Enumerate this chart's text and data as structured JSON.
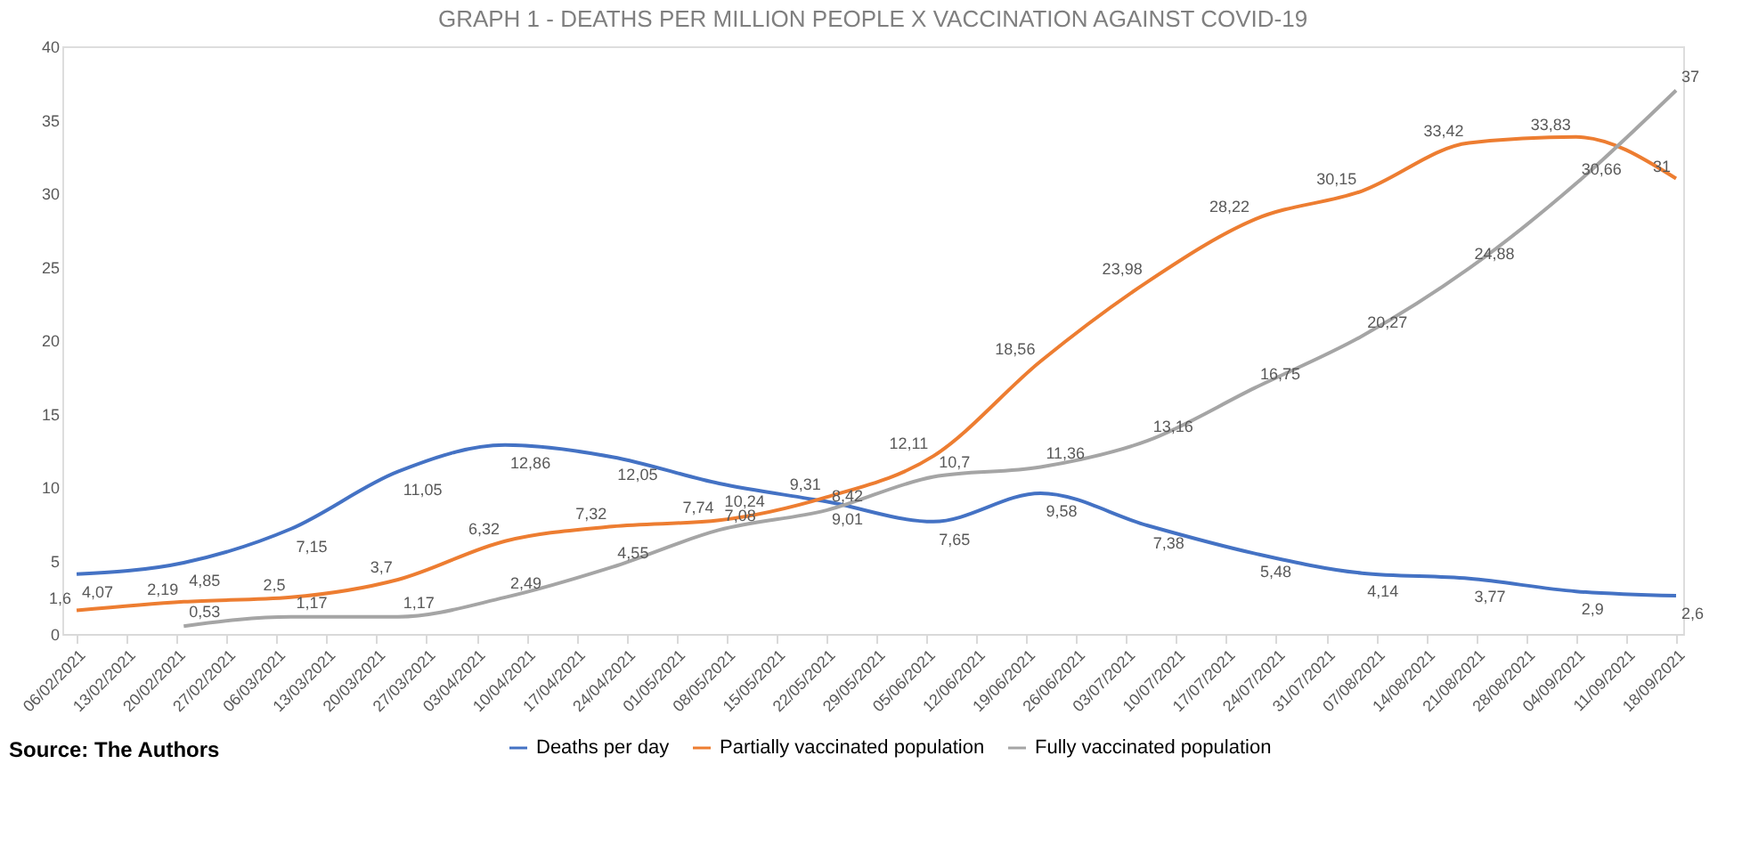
{
  "chart_data": {
    "type": "line",
    "title": "GRAPH 1 - DEATHS PER MILLION PEOPLE  X  VACCINATION AGAINST COVID-19",
    "x": [
      "2021-02-06",
      "2021-02-21",
      "2021-03-08",
      "2021-03-23",
      "2021-04-07",
      "2021-04-22",
      "2021-05-07",
      "2021-05-22",
      "2021-06-06",
      "2021-06-21",
      "2021-07-06",
      "2021-07-21",
      "2021-08-05",
      "2021-08-20",
      "2021-09-04",
      "2021-09-18"
    ],
    "xlim": [
      "2021-02-04",
      "2021-09-19"
    ],
    "xticks": [
      {
        "value": "2021-02-06",
        "label": "06/02/2021"
      },
      {
        "value": "2021-02-13",
        "label": "13/02/2021"
      },
      {
        "value": "2021-02-20",
        "label": "20/02/2021"
      },
      {
        "value": "2021-02-27",
        "label": "27/02/2021"
      },
      {
        "value": "2021-03-06",
        "label": "06/03/2021"
      },
      {
        "value": "2021-03-13",
        "label": "13/03/2021"
      },
      {
        "value": "2021-03-20",
        "label": "20/03/2021"
      },
      {
        "value": "2021-03-27",
        "label": "27/03/2021"
      },
      {
        "value": "2021-04-03",
        "label": "03/04/2021"
      },
      {
        "value": "2021-04-10",
        "label": "10/04/2021"
      },
      {
        "value": "2021-04-17",
        "label": "17/04/2021"
      },
      {
        "value": "2021-04-24",
        "label": "24/04/2021"
      },
      {
        "value": "2021-05-01",
        "label": "01/05/2021"
      },
      {
        "value": "2021-05-08",
        "label": "08/05/2021"
      },
      {
        "value": "2021-05-15",
        "label": "15/05/2021"
      },
      {
        "value": "2021-05-22",
        "label": "22/05/2021"
      },
      {
        "value": "2021-05-29",
        "label": "29/05/2021"
      },
      {
        "value": "2021-06-05",
        "label": "05/06/2021"
      },
      {
        "value": "2021-06-12",
        "label": "12/06/2021"
      },
      {
        "value": "2021-06-19",
        "label": "19/06/2021"
      },
      {
        "value": "2021-06-26",
        "label": "26/06/2021"
      },
      {
        "value": "2021-07-03",
        "label": "03/07/2021"
      },
      {
        "value": "2021-07-10",
        "label": "10/07/2021"
      },
      {
        "value": "2021-07-17",
        "label": "17/07/2021"
      },
      {
        "value": "2021-07-24",
        "label": "24/07/2021"
      },
      {
        "value": "2021-07-31",
        "label": "31/07/2021"
      },
      {
        "value": "2021-08-07",
        "label": "07/08/2021"
      },
      {
        "value": "2021-08-14",
        "label": "14/08/2021"
      },
      {
        "value": "2021-08-21",
        "label": "21/08/2021"
      },
      {
        "value": "2021-08-28",
        "label": "28/08/2021"
      },
      {
        "value": "2021-09-04",
        "label": "04/09/2021"
      },
      {
        "value": "2021-09-11",
        "label": "11/09/2021"
      },
      {
        "value": "2021-09-18",
        "label": "18/09/2021"
      }
    ],
    "ylim": [
      0,
      40
    ],
    "yticks": [
      0,
      5,
      10,
      15,
      20,
      25,
      30,
      35,
      40
    ],
    "series": [
      {
        "name": "Deaths per day",
        "color": "#4472c4",
        "values": [
          4.07,
          4.85,
          7.15,
          11.05,
          12.86,
          12.05,
          10.24,
          9.01,
          7.65,
          9.58,
          7.38,
          5.48,
          4.14,
          3.77,
          2.9,
          2.6
        ],
        "value_labels": [
          "4,07",
          "4,85",
          "7,15",
          "11,05",
          "12,86",
          "12,05",
          "10,24",
          "9,01",
          "7,65",
          "9,58",
          "7,38",
          "5,48",
          "4,14",
          "3,77",
          "2,9",
          "2,6"
        ]
      },
      {
        "name": "Partially vaccinated population",
        "color": "#ed7d31",
        "values": [
          1.6,
          2.19,
          2.5,
          3.7,
          6.32,
          7.32,
          7.74,
          9.31,
          12.11,
          18.56,
          23.98,
          28.22,
          30.15,
          33.42,
          33.83,
          31
        ],
        "value_labels": [
          "1,6",
          "2,19",
          "2,5",
          "3,7",
          "6,32",
          "7,32",
          "7,74",
          "9,31",
          "12,11",
          "18,56",
          "23,98",
          "28,22",
          "30,15",
          "33,42",
          "33,83",
          "31"
        ]
      },
      {
        "name": "Fully vaccinated population",
        "color": "#a5a5a5",
        "values": [
          null,
          0.53,
          1.17,
          1.17,
          2.49,
          4.55,
          7.08,
          8.42,
          10.7,
          11.36,
          13.16,
          16.75,
          20.27,
          24.88,
          30.66,
          37
        ],
        "value_labels": [
          null,
          "0,53",
          "1,17",
          "1,17",
          "2,49",
          "4,55",
          "7,08",
          "8,42",
          "10,7",
          "11,36",
          "13,16",
          "16,75",
          "20,27",
          "24,88",
          "30,66",
          "37"
        ]
      }
    ],
    "annotations": [
      "Source: The Authors"
    ],
    "legend": "bottom",
    "grid": false,
    "marker": "none",
    "line_style": "solid"
  }
}
